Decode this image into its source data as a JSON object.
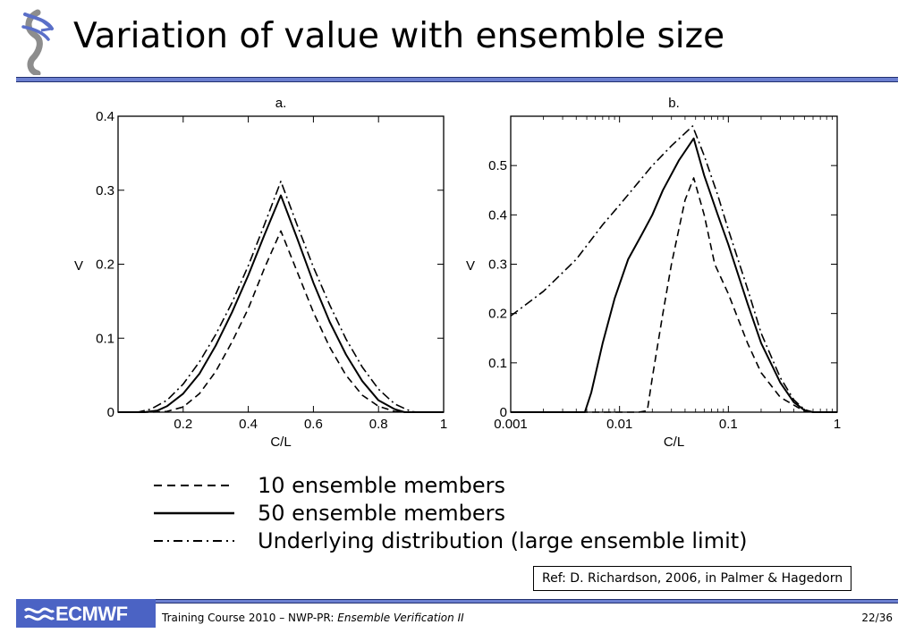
{
  "slide": {
    "title": "Variation of value with ensemble size"
  },
  "legend": {
    "items": [
      {
        "label": "10 ensemble members",
        "style": "dashed"
      },
      {
        "label": "50 ensemble members",
        "style": "solid"
      },
      {
        "label": "Underlying distribution (large ensemble limit)",
        "style": "dash-dot"
      }
    ]
  },
  "reference": "Ref: D. Richardson, 2006, in Palmer & Hagedorn",
  "footer": {
    "logo_text": "ECMWF",
    "course": "Training Course 2010 – NWP-PR: ",
    "course_italic": "Ensemble Verification II",
    "page": "22/36"
  },
  "colors": {
    "accent": "#6b7fd0",
    "accent_dark": "#22306f",
    "logo_bg": "#4b63c4"
  },
  "chart_data": [
    {
      "type": "line",
      "title": "a.",
      "xlabel": "C/L",
      "ylabel": "V",
      "xscale": "linear",
      "xlim": [
        0,
        1
      ],
      "ylim": [
        0,
        0.4
      ],
      "xticks": [
        0.2,
        0.4,
        0.6,
        0.8,
        1
      ],
      "xtick_labels": [
        "0.2",
        "0.4",
        "0.6",
        "0.8",
        "1"
      ],
      "yticks": [
        0,
        0.1,
        0.2,
        0.3,
        0.4
      ],
      "ytick_labels": [
        "0",
        "0.1",
        "0.2",
        "0.3",
        "0.4"
      ],
      "grid": false,
      "series": [
        {
          "name": "10 ensemble members",
          "style": "dashed",
          "points": [
            [
              0.0,
              0
            ],
            [
              0.1,
              0
            ],
            [
              0.15,
              0.001
            ],
            [
              0.2,
              0.007
            ],
            [
              0.25,
              0.025
            ],
            [
              0.3,
              0.055
            ],
            [
              0.35,
              0.095
            ],
            [
              0.4,
              0.14
            ],
            [
              0.45,
              0.195
            ],
            [
              0.5,
              0.245
            ],
            [
              0.55,
              0.19
            ],
            [
              0.6,
              0.135
            ],
            [
              0.65,
              0.088
            ],
            [
              0.7,
              0.05
            ],
            [
              0.75,
              0.023
            ],
            [
              0.8,
              0.008
            ],
            [
              0.85,
              0.001
            ],
            [
              0.9,
              0
            ],
            [
              1.0,
              0
            ]
          ]
        },
        {
          "name": "50 ensemble members",
          "style": "solid",
          "points": [
            [
              0.0,
              0
            ],
            [
              0.08,
              0
            ],
            [
              0.12,
              0.002
            ],
            [
              0.15,
              0.008
            ],
            [
              0.2,
              0.025
            ],
            [
              0.25,
              0.052
            ],
            [
              0.3,
              0.09
            ],
            [
              0.35,
              0.135
            ],
            [
              0.4,
              0.185
            ],
            [
              0.45,
              0.24
            ],
            [
              0.5,
              0.293
            ],
            [
              0.55,
              0.235
            ],
            [
              0.6,
              0.175
            ],
            [
              0.65,
              0.122
            ],
            [
              0.7,
              0.078
            ],
            [
              0.75,
              0.042
            ],
            [
              0.8,
              0.016
            ],
            [
              0.85,
              0.004
            ],
            [
              0.88,
              0
            ],
            [
              1.0,
              0
            ]
          ]
        },
        {
          "name": "Underlying distribution (large ensemble limit)",
          "style": "dash-dot",
          "points": [
            [
              0.0,
              0
            ],
            [
              0.06,
              0
            ],
            [
              0.1,
              0.004
            ],
            [
              0.15,
              0.016
            ],
            [
              0.2,
              0.038
            ],
            [
              0.25,
              0.068
            ],
            [
              0.3,
              0.105
            ],
            [
              0.35,
              0.148
            ],
            [
              0.4,
              0.198
            ],
            [
              0.45,
              0.254
            ],
            [
              0.5,
              0.312
            ],
            [
              0.55,
              0.253
            ],
            [
              0.6,
              0.196
            ],
            [
              0.65,
              0.145
            ],
            [
              0.7,
              0.099
            ],
            [
              0.75,
              0.061
            ],
            [
              0.8,
              0.031
            ],
            [
              0.85,
              0.011
            ],
            [
              0.9,
              0.001
            ],
            [
              0.92,
              0
            ],
            [
              1.0,
              0
            ]
          ]
        }
      ]
    },
    {
      "type": "line",
      "title": "b.",
      "xlabel": "C/L",
      "ylabel": "V",
      "xscale": "log",
      "xlim": [
        0.001,
        1
      ],
      "ylim": [
        0,
        0.6
      ],
      "xticks": [
        0.001,
        0.01,
        0.1,
        1
      ],
      "xtick_labels": [
        "0.001",
        "0.01",
        "0.1",
        "1"
      ],
      "yticks": [
        0,
        0.1,
        0.2,
        0.3,
        0.4,
        0.5
      ],
      "ytick_labels": [
        "0",
        "0.1",
        "0.2",
        "0.3",
        "0.4",
        "0.5"
      ],
      "grid": false,
      "series": [
        {
          "name": "10 ensemble members",
          "style": "dashed",
          "points": [
            [
              0.001,
              0
            ],
            [
              0.015,
              0
            ],
            [
              0.018,
              0.003
            ],
            [
              0.02,
              0.07
            ],
            [
              0.025,
              0.2
            ],
            [
              0.03,
              0.3
            ],
            [
              0.04,
              0.43
            ],
            [
              0.048,
              0.475
            ],
            [
              0.06,
              0.4
            ],
            [
              0.075,
              0.3
            ],
            [
              0.1,
              0.24
            ],
            [
              0.15,
              0.14
            ],
            [
              0.2,
              0.08
            ],
            [
              0.3,
              0.03
            ],
            [
              0.5,
              0.002
            ],
            [
              0.6,
              0
            ],
            [
              1.0,
              0
            ]
          ]
        },
        {
          "name": "50 ensemble members",
          "style": "solid",
          "points": [
            [
              0.001,
              0
            ],
            [
              0.0048,
              0
            ],
            [
              0.0055,
              0.04
            ],
            [
              0.007,
              0.14
            ],
            [
              0.009,
              0.23
            ],
            [
              0.012,
              0.31
            ],
            [
              0.016,
              0.36
            ],
            [
              0.02,
              0.4
            ],
            [
              0.025,
              0.45
            ],
            [
              0.035,
              0.51
            ],
            [
              0.048,
              0.555
            ],
            [
              0.06,
              0.48
            ],
            [
              0.08,
              0.4
            ],
            [
              0.1,
              0.34
            ],
            [
              0.15,
              0.22
            ],
            [
              0.2,
              0.14
            ],
            [
              0.3,
              0.06
            ],
            [
              0.4,
              0.02
            ],
            [
              0.5,
              0.004
            ],
            [
              0.6,
              0
            ],
            [
              1.0,
              0
            ]
          ]
        },
        {
          "name": "Underlying distribution (large ensemble limit)",
          "style": "dash-dot",
          "points": [
            [
              0.001,
              0.195
            ],
            [
              0.002,
              0.245
            ],
            [
              0.004,
              0.31
            ],
            [
              0.007,
              0.38
            ],
            [
              0.01,
              0.42
            ],
            [
              0.02,
              0.5
            ],
            [
              0.03,
              0.54
            ],
            [
              0.047,
              0.58
            ],
            [
              0.06,
              0.52
            ],
            [
              0.08,
              0.44
            ],
            [
              0.1,
              0.37
            ],
            [
              0.15,
              0.25
            ],
            [
              0.2,
              0.16
            ],
            [
              0.3,
              0.07
            ],
            [
              0.4,
              0.025
            ],
            [
              0.5,
              0.005
            ],
            [
              0.6,
              0
            ],
            [
              1.0,
              0
            ]
          ]
        }
      ]
    }
  ]
}
